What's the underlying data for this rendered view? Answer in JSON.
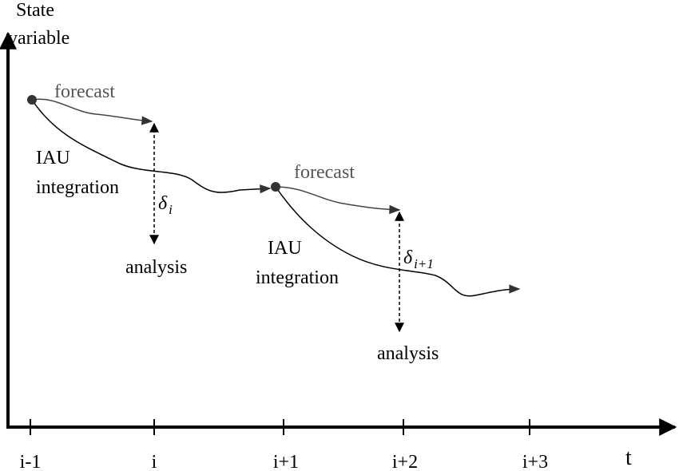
{
  "y_axis_label": [
    "State",
    "variable"
  ],
  "x_axis_label": "t",
  "ticks": [
    "i-1",
    "i",
    "i+1",
    "i+2",
    "i+3"
  ],
  "steps": [
    {
      "forecast": "forecast",
      "iau": [
        "IAU",
        "integration"
      ],
      "delta": {
        "symbol": "δ",
        "subscript": "i"
      },
      "analysis": "analysis"
    },
    {
      "forecast": "forecast",
      "iau": [
        "IAU",
        "integration"
      ],
      "delta": {
        "symbol": "δ",
        "subscript": "i+1"
      },
      "analysis": "analysis"
    }
  ]
}
